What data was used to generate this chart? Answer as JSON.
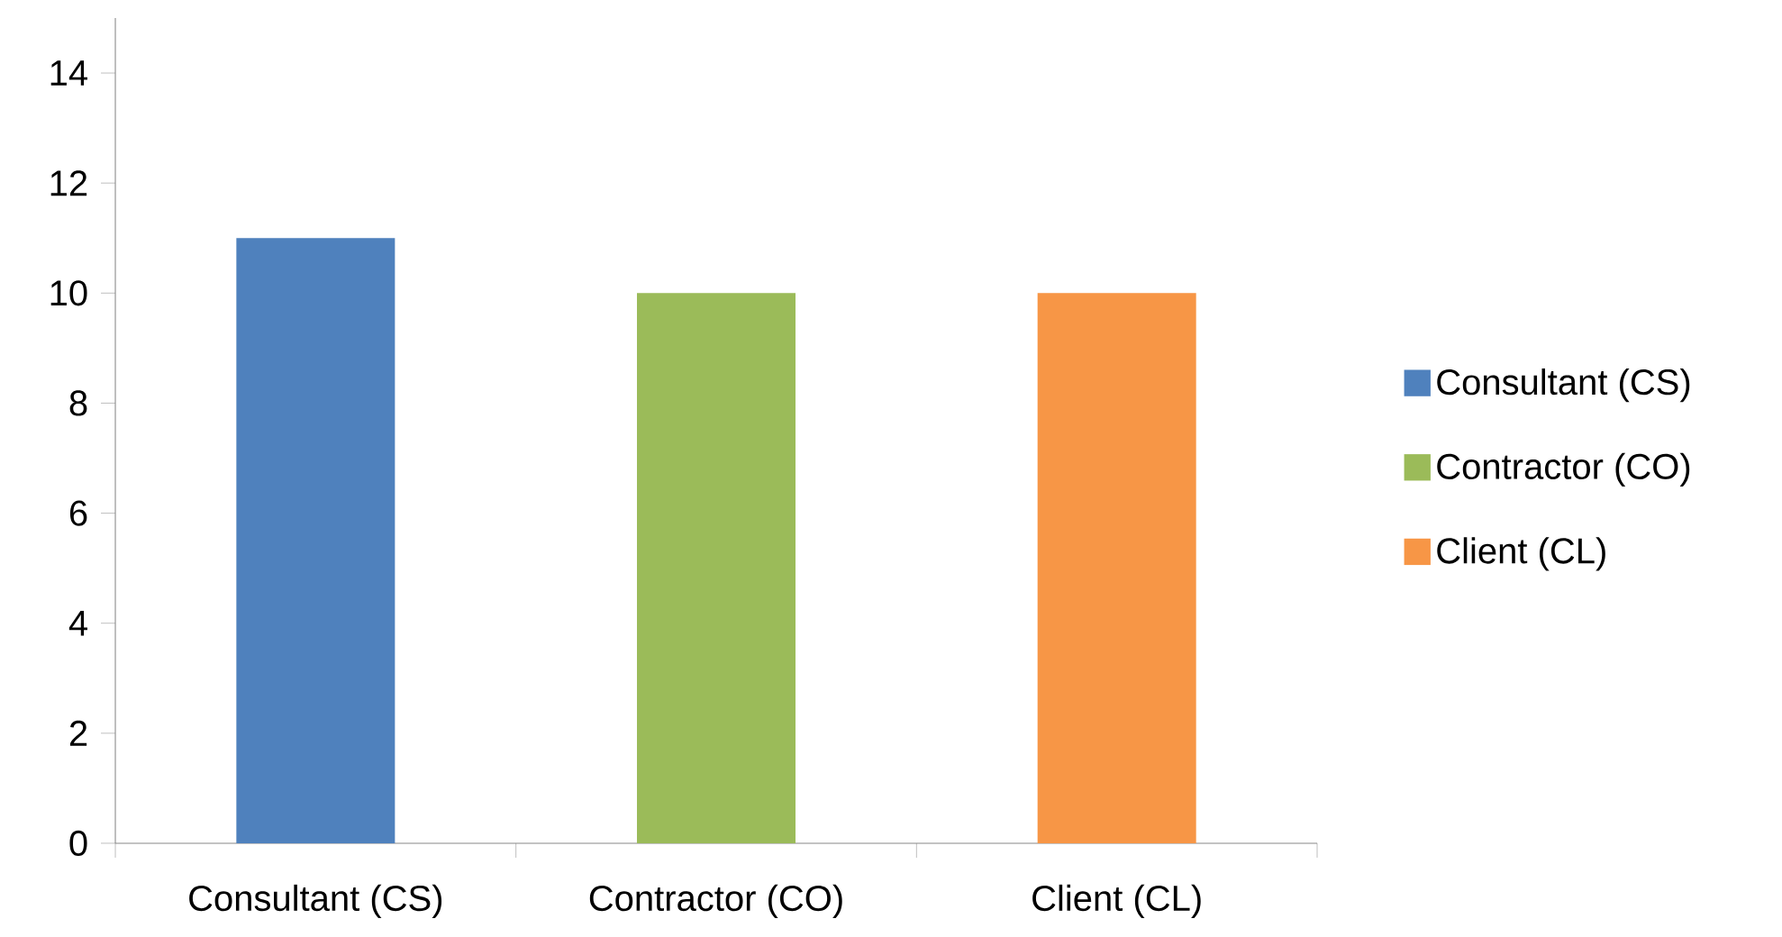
{
  "chart_data": {
    "type": "bar",
    "categories": [
      "Consultant (CS)",
      "Contractor (CO)",
      "Client (CL)"
    ],
    "series": [
      {
        "name": "Consultant (CS)",
        "color": "#4f81bd",
        "values": [
          11,
          null,
          null
        ]
      },
      {
        "name": "Contractor (CO)",
        "color": "#9bbb59",
        "values": [
          null,
          10,
          null
        ]
      },
      {
        "name": "Client (CL)",
        "color": "#f79646",
        "values": [
          null,
          null,
          10
        ]
      }
    ],
    "ylim": [
      0,
      15
    ],
    "yticks": [
      0,
      2,
      4,
      6,
      8,
      10,
      12,
      14
    ],
    "grid": false,
    "legend": "right"
  }
}
